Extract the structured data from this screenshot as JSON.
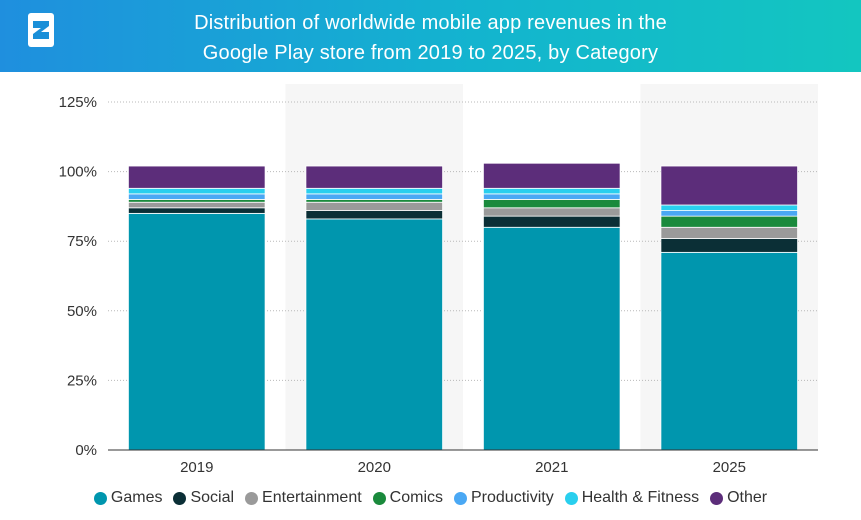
{
  "header": {
    "title_line1": "Distribution of worldwide mobile app revenues in the",
    "title_line2": "Google Play store from 2019 to 2025, by Category",
    "logo": "statista-logo-icon"
  },
  "chart_data": {
    "type": "bar",
    "stacked": true,
    "title": "Distribution of worldwide mobile app revenues in the Google Play store from 2019 to 2025, by Category",
    "xlabel": "",
    "ylabel": "",
    "ylim": [
      0,
      125
    ],
    "yticks": [
      0,
      25,
      50,
      75,
      100,
      125
    ],
    "ytick_labels": [
      "0%",
      "25%",
      "50%",
      "75%",
      "100%",
      "125%"
    ],
    "grid": true,
    "legend_position": "bottom",
    "categories": [
      "2019",
      "2020",
      "2021",
      "2025"
    ],
    "series": [
      {
        "name": "Games",
        "color": "#0096ae",
        "values": [
          85,
          83,
          80,
          71
        ]
      },
      {
        "name": "Social",
        "color": "#0b2f36",
        "values": [
          2,
          3,
          4,
          5
        ]
      },
      {
        "name": "Entertainment",
        "color": "#9a9a9a",
        "values": [
          2,
          3,
          3,
          4
        ]
      },
      {
        "name": "Comics",
        "color": "#1a8a3c",
        "values": [
          1,
          1,
          3,
          4
        ]
      },
      {
        "name": "Productivity",
        "color": "#4aa8f4",
        "values": [
          2,
          2,
          2,
          2
        ]
      },
      {
        "name": "Health & Fitness",
        "color": "#29cfee",
        "values": [
          2,
          2,
          2,
          2
        ]
      },
      {
        "name": "Other",
        "color": "#5c2d7a",
        "values": [
          8,
          8,
          9,
          14
        ]
      }
    ]
  }
}
